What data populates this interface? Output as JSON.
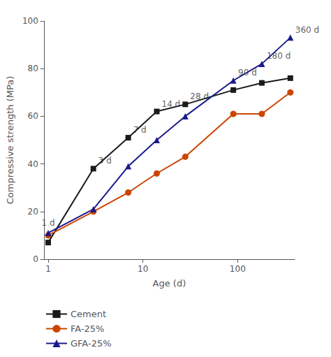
{
  "chart_data": {
    "type": "line",
    "xlabel": "Age (d)",
    "ylabel": "Compressive strength (MPa)",
    "x": [
      1,
      3,
      7,
      14,
      28,
      90,
      180,
      360
    ],
    "series": [
      {
        "name": "Cement",
        "color": "#1a1a1a",
        "marker": "square",
        "values": [
          7,
          38,
          51,
          62,
          65,
          71,
          74,
          76
        ]
      },
      {
        "name": "FA-25%",
        "color": "#cc4400",
        "marker": "circle",
        "values": [
          10,
          20,
          28,
          36,
          43,
          61,
          61,
          70
        ]
      },
      {
        "name": "GFA-25%",
        "color": "#1a1a8c",
        "marker": "triangle",
        "values": [
          11,
          21,
          39,
          50,
          60,
          75,
          82,
          93
        ]
      }
    ],
    "log": "x",
    "xlim": [
      0.9,
      400
    ],
    "xticks": [
      1,
      10,
      100
    ],
    "ylim": [
      0,
      100
    ],
    "yticks": [
      0,
      20,
      40,
      60,
      80,
      100
    ],
    "grid": false,
    "legend": "bottom",
    "annotations": [
      {
        "text": "1 d",
        "x": 1,
        "y": 11
      },
      {
        "text": "3 d",
        "x": 3,
        "y": 38
      },
      {
        "text": "7 d",
        "x": 7,
        "y": 51
      },
      {
        "text": "14 d",
        "x": 14,
        "y": 62
      },
      {
        "text": "28 d",
        "x": 28,
        "y": 65
      },
      {
        "text": "90 d",
        "x": 90,
        "y": 75
      },
      {
        "text": "180 d",
        "x": 180,
        "y": 82
      },
      {
        "text": "360 d",
        "x": 360,
        "y": 93
      }
    ]
  }
}
